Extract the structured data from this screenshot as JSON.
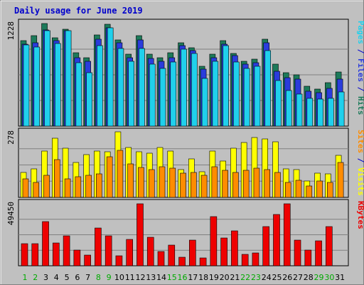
{
  "chart_data": {
    "type": "bar",
    "title": "Daily usage for June 2019",
    "colors": {
      "background": "#c0c0c0",
      "title": "#0000cc",
      "hits": "#1c7a5a",
      "files": "#2a3cdc",
      "pages": "#20d0ec",
      "visits": "#ffff00",
      "sites": "#ff8c00",
      "kbytes": "#ee0000",
      "weekend_label": "#00aa00"
    },
    "x": {
      "labels": [
        "1",
        "2",
        "3",
        "4",
        "5",
        "6",
        "7",
        "8",
        "9",
        "10",
        "11",
        "12",
        "13",
        "14",
        "15",
        "16",
        "17",
        "18",
        "19",
        "20",
        "21",
        "22",
        "23",
        "24",
        "25",
        "26",
        "27",
        "28",
        "29",
        "30",
        "31"
      ],
      "weekend_days": [
        "1",
        "2",
        "8",
        "9",
        "15",
        "16",
        "22",
        "23",
        "29",
        "30"
      ]
    },
    "panels": [
      {
        "id": "hits_files_pages",
        "ymax_label": "1228",
        "ymax": 1228,
        "axis_label": [
          {
            "text": "Pages",
            "color_key": "pages"
          },
          {
            "text": " / ",
            "color_key": "title"
          },
          {
            "text": "Files",
            "color_key": "files"
          },
          {
            "text": " / ",
            "color_key": "title"
          },
          {
            "text": "Hits",
            "color_key": "hits"
          }
        ],
        "series": [
          {
            "name": "Hits",
            "color_key": "hits",
            "values": [
              1020,
              1080,
              1228,
              1060,
              1160,
              880,
              820,
              1090,
              1220,
              1030,
              860,
              1080,
              860,
              820,
              880,
              1000,
              940,
              720,
              860,
              1020,
              870,
              780,
              800,
              1040,
              740,
              640,
              610,
              480,
              440,
              520,
              650
            ]
          },
          {
            "name": "Files",
            "color_key": "files",
            "values": [
              980,
              1000,
              1150,
              1020,
              1140,
              820,
              780,
              1040,
              1180,
              1000,
              820,
              1030,
              810,
              780,
              820,
              960,
              900,
              680,
              820,
              980,
              840,
              740,
              760,
              1000,
              660,
              580,
              560,
              420,
              400,
              450,
              560
            ]
          },
          {
            "name": "Pages",
            "color_key": "pages",
            "values": [
              970,
              950,
              1140,
              990,
              1140,
              760,
              640,
              960,
              1180,
              930,
              780,
              930,
              740,
              690,
              770,
              920,
              870,
              570,
              780,
              960,
              770,
              690,
              720,
              900,
              550,
              430,
              380,
              330,
              320,
              330,
              410
            ]
          }
        ]
      },
      {
        "id": "visits_sites",
        "ymax_label": "278",
        "ymax": 278,
        "axis_label": [
          {
            "text": "Sites",
            "color_key": "sites"
          },
          {
            "text": " / ",
            "color_key": "title"
          },
          {
            "text": "Visits",
            "color_key": "visits"
          }
        ],
        "series": [
          {
            "name": "Visits",
            "color_key": "visits",
            "values": [
              108,
              122,
              198,
              255,
              210,
              150,
              182,
              198,
              195,
              280,
              215,
              195,
              190,
              215,
              200,
              120,
              165,
              110,
              200,
              155,
              212,
              235,
              258,
              250,
              238,
              122,
              120,
              70,
              105,
              100,
              180
            ]
          },
          {
            "name": "Sites",
            "color_key": "sites",
            "values": [
              80,
              65,
              95,
              162,
              80,
              90,
              95,
              100,
              175,
              202,
              145,
              128,
              120,
              130,
              125,
              105,
              108,
              95,
              130,
              115,
              108,
              115,
              125,
              120,
              108,
              65,
              72,
              50,
              70,
              65,
              150
            ]
          }
        ]
      },
      {
        "id": "kbytes",
        "ymax_label": "49450",
        "ymax": 49450,
        "axis_label": [
          {
            "text": "KBytes",
            "color_key": "kbytes"
          }
        ],
        "series": [
          {
            "name": "KBytes",
            "color_key": "kbytes",
            "values": [
              17500,
              17500,
              35000,
              18000,
              24000,
              12500,
              8500,
              30000,
              24000,
              8000,
              21000,
              49450,
              23000,
              11500,
              16500,
              7000,
              20500,
              6000,
              39000,
              22000,
              28000,
              9000,
              10000,
              31000,
              41000,
              49450,
              20500,
              12500,
              20000,
              31500,
              0
            ]
          }
        ]
      }
    ]
  }
}
